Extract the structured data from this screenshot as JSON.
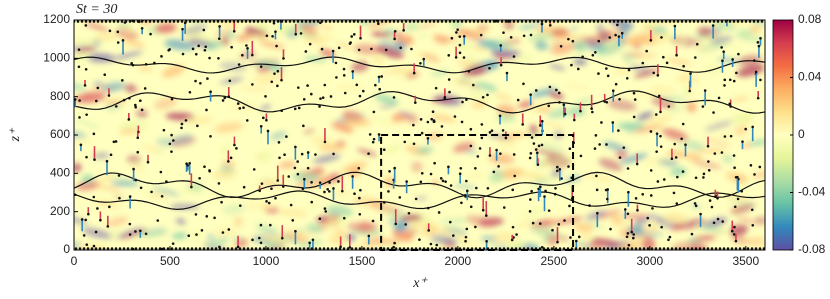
{
  "chart_data": {
    "type": "heatmap",
    "title": "St = 30",
    "x_label": "x⁺",
    "y_label": "z⁺",
    "xlim": [
      0,
      3600
    ],
    "xticks": [
      0,
      500,
      1000,
      1500,
      2000,
      2500,
      3000,
      3500
    ],
    "ylim": [
      0,
      1200
    ],
    "yticks": [
      0,
      200,
      400,
      600,
      800,
      1000,
      1200
    ],
    "clim": [
      -0.08,
      0.08
    ],
    "cticks": [
      0.08,
      0.04,
      0,
      -0.04,
      -0.08
    ],
    "colormap": [
      "#5e4fa2",
      "#3288bd",
      "#66c2a5",
      "#abdda4",
      "#e6f598",
      "#ffffbf",
      "#fee08b",
      "#fdae61",
      "#f46d43",
      "#d53e4f",
      "#9e0142"
    ],
    "region": {
      "x": [
        1600,
        2600
      ],
      "y": [
        0,
        600
      ]
    }
  }
}
